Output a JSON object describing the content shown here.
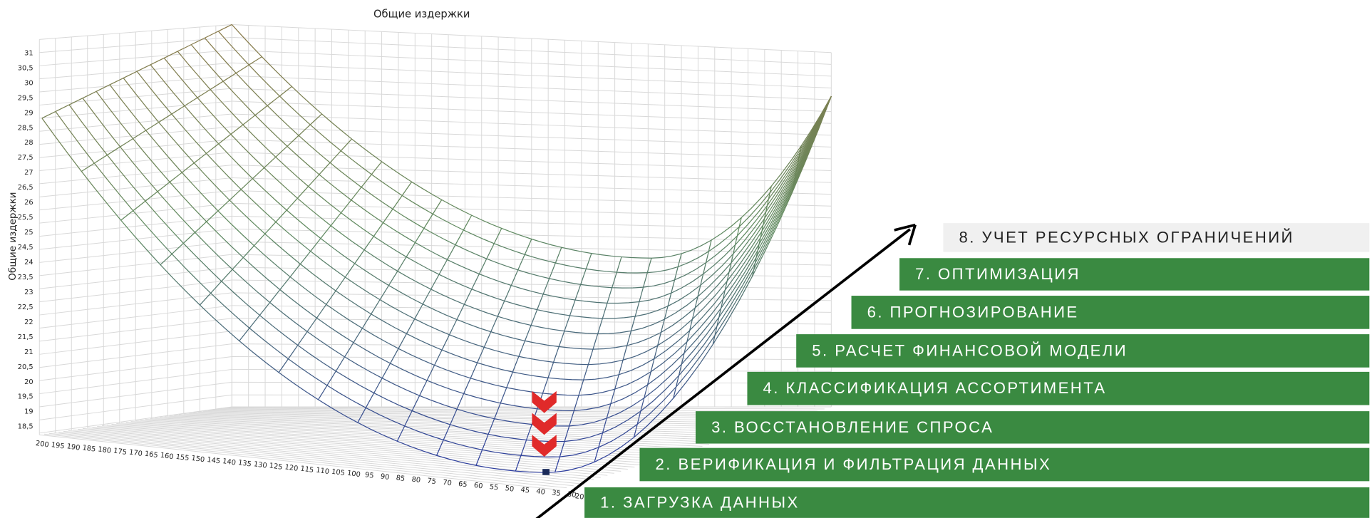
{
  "chart": {
    "title": "Общие издержки",
    "y_axis_label": "Общие издержки",
    "y_ticks": [
      "31",
      "30,5",
      "30",
      "29,5",
      "29",
      "28,5",
      "28",
      "27,5",
      "27",
      "26,5",
      "26",
      "25,5",
      "25",
      "24,5",
      "24",
      "23,5",
      "23",
      "22,5",
      "22",
      "21,5",
      "21",
      "20,5",
      "20",
      "19,5",
      "19",
      "18,5"
    ],
    "x_ticks": [
      "200",
      "195",
      "190",
      "185",
      "180",
      "175",
      "170",
      "165",
      "160",
      "155",
      "150",
      "145",
      "140",
      "135",
      "130",
      "125",
      "120",
      "115",
      "110",
      "105",
      "100",
      "95",
      "90",
      "85",
      "80",
      "75",
      "70",
      "65",
      "60",
      "55",
      "50",
      "45",
      "40",
      "35",
      "30",
      "20"
    ]
  },
  "steps": [
    "1. ЗАГРУЗКА  ДАННЫХ",
    "2. ВЕРИФИКАЦИЯ  И ФИЛЬТРАЦИЯ  ДАННЫХ",
    "3. ВОССТАНОВЛЕНИЕ  СПРОСА",
    "4. КЛАССИФИКАЦИЯ  АССОРТИМЕНТА",
    "5. РАСЧЕТ ФИНАНСОВОЙ  МОДЕЛИ",
    "6. ПРОГНОЗИРОВАНИЕ",
    "7. ОПТИМИЗАЦИЯ",
    "8. УЧЕТ РЕСУРСНЫХ  ОГРАНИЧЕНИЙ"
  ]
}
